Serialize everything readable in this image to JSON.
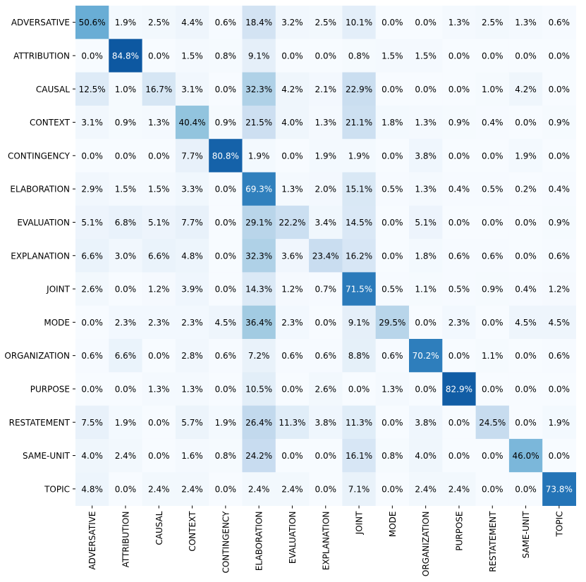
{
  "chart_data": {
    "type": "heatmap",
    "title": "",
    "xlabel": "",
    "ylabel": "",
    "colormap": "Blues",
    "value_range": [
      0,
      100
    ],
    "value_format": "percent_one_decimal",
    "rows": [
      "ADVERSATIVE",
      "ATTRIBUTION",
      "CAUSAL",
      "CONTEXT",
      "CONTINGENCY",
      "ELABORATION",
      "EVALUATION",
      "EXPLANATION",
      "JOINT",
      "MODE",
      "ORGANIZATION",
      "PURPOSE",
      "RESTATEMENT",
      "SAME-UNIT",
      "TOPIC"
    ],
    "columns": [
      "ADVERSATIVE",
      "ATTRIBUTION",
      "CAUSAL",
      "CONTEXT",
      "CONTINGENCY",
      "ELABORATION",
      "EVALUATION",
      "EXPLANATION",
      "JOINT",
      "MODE",
      "ORGANIZATION",
      "PURPOSE",
      "RESTATEMENT",
      "SAME-UNIT",
      "TOPIC"
    ],
    "values": [
      [
        50.6,
        1.9,
        2.5,
        4.4,
        0.6,
        18.4,
        3.2,
        2.5,
        10.1,
        0.0,
        0.0,
        1.3,
        2.5,
        1.3,
        0.6
      ],
      [
        0.0,
        84.8,
        0.0,
        1.5,
        0.8,
        9.1,
        0.0,
        0.0,
        0.8,
        1.5,
        1.5,
        0.0,
        0.0,
        0.0,
        0.0
      ],
      [
        12.5,
        1.0,
        16.7,
        3.1,
        0.0,
        32.3,
        4.2,
        2.1,
        22.9,
        0.0,
        0.0,
        0.0,
        1.0,
        4.2,
        0.0
      ],
      [
        3.1,
        0.9,
        1.3,
        40.4,
        0.9,
        21.5,
        4.0,
        1.3,
        21.1,
        1.8,
        1.3,
        0.9,
        0.4,
        0.0,
        0.9
      ],
      [
        0.0,
        0.0,
        0.0,
        7.7,
        80.8,
        1.9,
        0.0,
        1.9,
        1.9,
        0.0,
        3.8,
        0.0,
        0.0,
        1.9,
        0.0
      ],
      [
        2.9,
        1.5,
        1.5,
        3.3,
        0.0,
        69.3,
        1.3,
        2.0,
        15.1,
        0.5,
        1.3,
        0.4,
        0.5,
        0.2,
        0.4
      ],
      [
        5.1,
        6.8,
        5.1,
        7.7,
        0.0,
        29.1,
        22.2,
        3.4,
        14.5,
        0.0,
        5.1,
        0.0,
        0.0,
        0.0,
        0.9
      ],
      [
        6.6,
        3.0,
        6.6,
        4.8,
        0.0,
        32.3,
        3.6,
        23.4,
        16.2,
        0.0,
        1.8,
        0.6,
        0.6,
        0.0,
        0.6
      ],
      [
        2.6,
        0.0,
        1.2,
        3.9,
        0.0,
        14.3,
        1.2,
        0.7,
        71.5,
        0.5,
        1.1,
        0.5,
        0.9,
        0.4,
        1.2
      ],
      [
        0.0,
        2.3,
        2.3,
        2.3,
        4.5,
        36.4,
        2.3,
        0.0,
        9.1,
        29.5,
        0.0,
        2.3,
        0.0,
        4.5,
        4.5
      ],
      [
        0.6,
        6.6,
        0.0,
        2.8,
        0.6,
        7.2,
        0.6,
        0.6,
        8.8,
        0.6,
        70.2,
        0.0,
        1.1,
        0.0,
        0.6
      ],
      [
        0.0,
        0.0,
        1.3,
        1.3,
        0.0,
        10.5,
        0.0,
        2.6,
        0.0,
        1.3,
        0.0,
        82.9,
        0.0,
        0.0,
        0.0
      ],
      [
        7.5,
        1.9,
        0.0,
        5.7,
        1.9,
        26.4,
        11.3,
        3.8,
        11.3,
        0.0,
        3.8,
        0.0,
        24.5,
        0.0,
        1.9
      ],
      [
        4.0,
        2.4,
        0.0,
        1.6,
        0.8,
        24.2,
        0.0,
        0.0,
        16.1,
        0.8,
        4.0,
        0.0,
        0.0,
        46.0,
        0.0
      ],
      [
        4.8,
        0.0,
        2.4,
        2.4,
        0.0,
        2.4,
        2.4,
        0.0,
        7.1,
        0.0,
        2.4,
        2.4,
        0.0,
        0.0,
        73.8
      ]
    ],
    "colorbar": false,
    "grid": false
  }
}
